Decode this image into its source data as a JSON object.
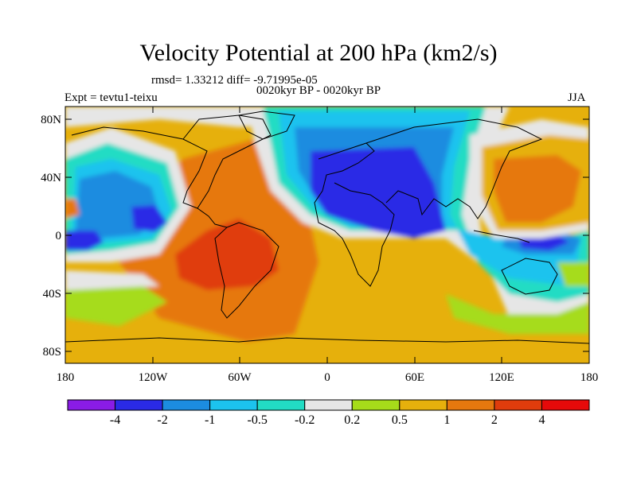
{
  "figure": {
    "title": "Velocity Potential at 200 hPa (km2/s)",
    "stats": "rmsd= 1.33212 diff= -9.71995e-05",
    "periods": "0020kyr BP - 0020kyr BP",
    "experiment": "Expt = tevtu1-teixu",
    "season": "JJA"
  },
  "axes": {
    "lat_ticks": [
      "80N",
      "40N",
      "0",
      "40S",
      "80S"
    ],
    "lon_ticks": [
      "180",
      "120W",
      "60W",
      "0",
      "60E",
      "120E",
      "180"
    ]
  },
  "colorbar": {
    "labels": [
      "-4",
      "-2",
      "-1",
      "-0.5",
      "-0.2",
      "0.2",
      "0.5",
      "1",
      "2",
      "4"
    ],
    "colors": [
      "#8a1ce6",
      "#2a2ae6",
      "#1c8ce0",
      "#1cc3ee",
      "#22dcc4",
      "#e6e6e6",
      "#a6dc1a",
      "#e6b00c",
      "#e6780e",
      "#e03c0c",
      "#e60a0a"
    ]
  }
}
